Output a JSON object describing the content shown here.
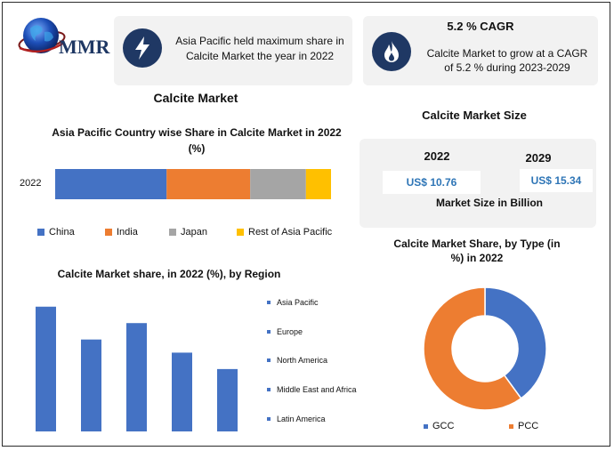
{
  "logo": {
    "text": "MMR"
  },
  "header": {
    "fact1": "Asia Pacific held maximum share in Calcite Market the year in 2022",
    "cagr_title": "5.2 % CAGR",
    "fact2": "Calcite Market to grow at a CAGR of 5.2 % during 2023-2029"
  },
  "left_title": "Calcite Market",
  "market_size": {
    "title": "Calcite Market Size",
    "year1": "2022",
    "year2": "2029",
    "value1": "US$ 10.76",
    "value2": "US$ 15.34",
    "unit": "Market Size in Billion"
  },
  "colors": {
    "blue": "#4472c4",
    "orange": "#ed7d31",
    "gray": "#a5a5a5",
    "yellow": "#ffc000",
    "navy": "#1f3864"
  },
  "chart_data": [
    {
      "type": "bar",
      "stacked": true,
      "orientation": "horizontal",
      "title": "Asia Pacific Country wise Share in Calcite Market  in 2022 (%)",
      "categories": [
        "2022"
      ],
      "series": [
        {
          "name": "China",
          "values": [
            40
          ],
          "color": "#4472c4"
        },
        {
          "name": "India",
          "values": [
            30
          ],
          "color": "#ed7d31"
        },
        {
          "name": "Japan",
          "values": [
            20
          ],
          "color": "#a5a5a5"
        },
        {
          "name": "Rest of Asia Pacific",
          "values": [
            9
          ],
          "color": "#ffc000"
        }
      ],
      "legend": "bottom"
    },
    {
      "type": "bar",
      "title": "Calcite Market share, in 2022 (%), by Region",
      "categories": [
        "Asia Pacific",
        "Europe",
        "North America",
        "Middle East and Africa",
        "Latin America"
      ],
      "values": [
        38,
        28,
        33,
        24,
        19
      ],
      "ylim": [
        0,
        42
      ],
      "color": "#4472c4",
      "legend": "right"
    },
    {
      "type": "pie",
      "donut": true,
      "title": "Calcite Market Share, by Type (in %) in 2022",
      "labels": [
        "GCC",
        "PCC"
      ],
      "values": [
        40,
        60
      ],
      "colors": [
        "#4472c4",
        "#ed7d31"
      ],
      "legend": "bottom"
    }
  ]
}
